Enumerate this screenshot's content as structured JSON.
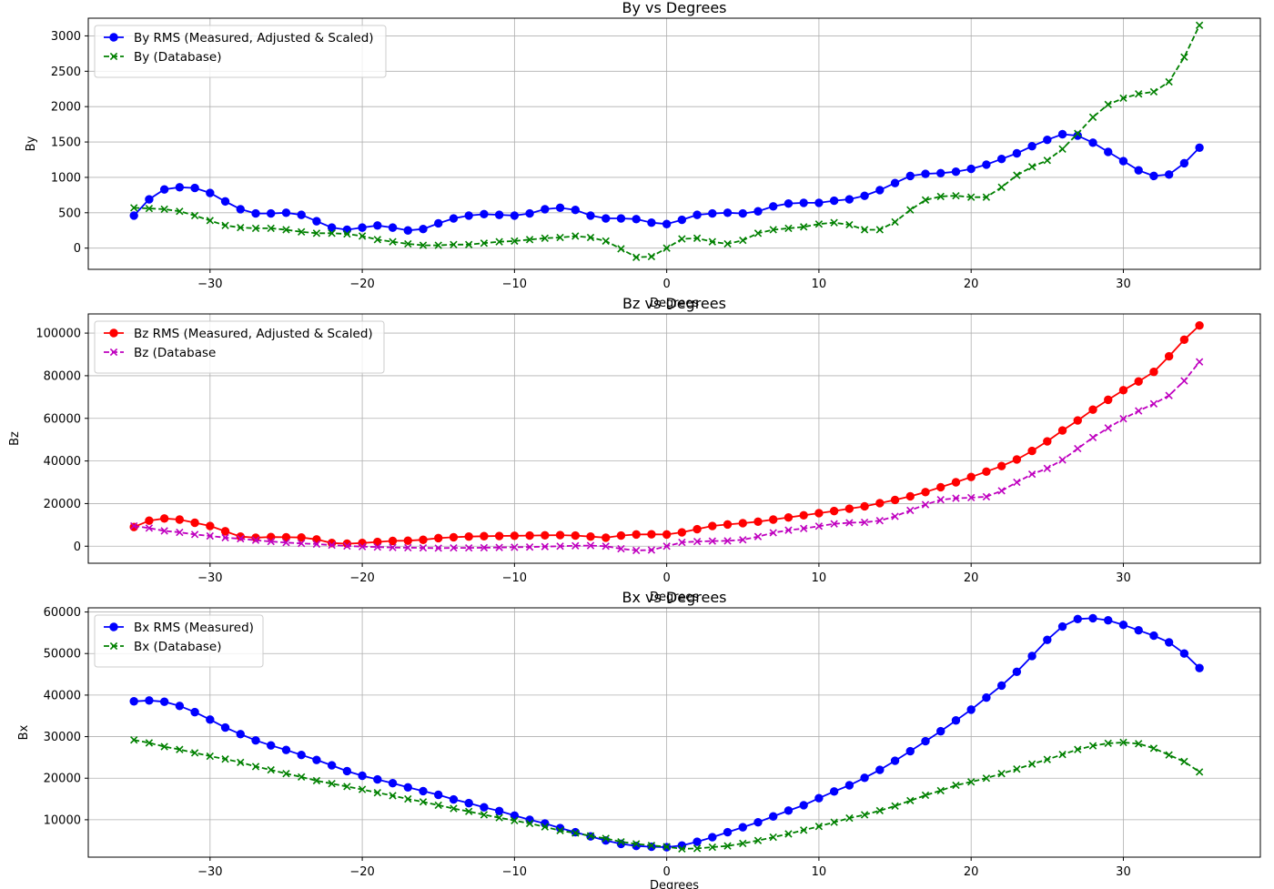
{
  "chart_data": [
    {
      "type": "line",
      "title": "By vs Degrees",
      "xlabel": "Degrees",
      "ylabel": "By",
      "xlim": [
        -38,
        39
      ],
      "ylim": [
        -300,
        3250
      ],
      "xticks": [
        -30,
        -20,
        -10,
        0,
        10,
        20,
        30
      ],
      "xtick_labels": [
        "−30",
        "−20",
        "−10",
        "0",
        "10",
        "20",
        "30"
      ],
      "yticks": [
        0,
        500,
        1000,
        1500,
        2000,
        2500,
        3000
      ],
      "ytick_labels": [
        "0",
        "500",
        "1000",
        "1500",
        "2000",
        "2500",
        "3000"
      ],
      "grid": true,
      "legend_position": "top-left",
      "x": [
        -35,
        -34,
        -33,
        -32,
        -31,
        -30,
        -29,
        -28,
        -27,
        -26,
        -25,
        -24,
        -23,
        -22,
        -21,
        -20,
        -19,
        -18,
        -17,
        -16,
        -15,
        -14,
        -13,
        -12,
        -11,
        -10,
        -9,
        -8,
        -7,
        -6,
        -5,
        -4,
        -3,
        -2,
        -1,
        0,
        1,
        2,
        3,
        4,
        5,
        6,
        7,
        8,
        9,
        10,
        11,
        12,
        13,
        14,
        15,
        16,
        17,
        18,
        19,
        20,
        21,
        22,
        23,
        24,
        25,
        26,
        27,
        28,
        29,
        30,
        31,
        32,
        33,
        34,
        35
      ],
      "series": [
        {
          "name": "By RMS (Measured, Adjusted & Scaled)",
          "color": "#0000ff",
          "style": "solid",
          "marker": "circle",
          "values": [
            460,
            690,
            830,
            860,
            850,
            780,
            660,
            550,
            490,
            490,
            500,
            470,
            380,
            290,
            260,
            290,
            320,
            290,
            250,
            270,
            350,
            420,
            460,
            480,
            470,
            460,
            490,
            550,
            570,
            540,
            460,
            420,
            420,
            410,
            360,
            340,
            400,
            470,
            490,
            500,
            490,
            520,
            590,
            630,
            640,
            640,
            670,
            690,
            740,
            820,
            920,
            1020,
            1050,
            1060,
            1080,
            1120,
            1180,
            1260,
            1340,
            1440,
            1530,
            1610,
            1590,
            1490,
            1360,
            1230,
            1100,
            1020,
            1040,
            1200,
            1420
          ]
        },
        {
          "name": "By (Database)",
          "color": "#008000",
          "style": "dashed",
          "marker": "x",
          "values": [
            570,
            560,
            550,
            520,
            460,
            390,
            320,
            290,
            280,
            280,
            260,
            230,
            210,
            210,
            200,
            170,
            120,
            90,
            60,
            40,
            40,
            50,
            50,
            70,
            90,
            100,
            120,
            140,
            150,
            170,
            150,
            100,
            -10,
            -130,
            -120,
            0,
            130,
            140,
            90,
            60,
            110,
            210,
            260,
            280,
            300,
            340,
            360,
            330,
            260,
            260,
            370,
            540,
            680,
            730,
            740,
            720,
            720,
            860,
            1030,
            1150,
            1240,
            1400,
            1620,
            1850,
            2030,
            2120,
            2180,
            2210,
            2350,
            2700,
            3150
          ]
        }
      ]
    },
    {
      "type": "line",
      "title": "Bz vs Degrees",
      "xlabel": "Degrees",
      "ylabel": "Bz",
      "xlim": [
        -38,
        39
      ],
      "ylim": [
        -8000,
        109000
      ],
      "xticks": [
        -30,
        -20,
        -10,
        0,
        10,
        20,
        30
      ],
      "xtick_labels": [
        "−30",
        "−20",
        "−10",
        "0",
        "10",
        "20",
        "30"
      ],
      "yticks": [
        0,
        20000,
        40000,
        60000,
        80000,
        100000
      ],
      "ytick_labels": [
        "0",
        "20000",
        "40000",
        "60000",
        "80000",
        "100000"
      ],
      "grid": true,
      "legend_position": "top-left",
      "x": [
        -35,
        -34,
        -33,
        -32,
        -31,
        -30,
        -29,
        -28,
        -27,
        -26,
        -25,
        -24,
        -23,
        -22,
        -21,
        -20,
        -19,
        -18,
        -17,
        -16,
        -15,
        -14,
        -13,
        -12,
        -11,
        -10,
        -9,
        -8,
        -7,
        -6,
        -5,
        -4,
        -3,
        -2,
        -1,
        0,
        1,
        2,
        3,
        4,
        5,
        6,
        7,
        8,
        9,
        10,
        11,
        12,
        13,
        14,
        15,
        16,
        17,
        18,
        19,
        20,
        21,
        22,
        23,
        24,
        25,
        26,
        27,
        28,
        29,
        30,
        31,
        32,
        33,
        34,
        35
      ],
      "series": [
        {
          "name": "Bz RMS (Measured, Adjusted & Scaled)",
          "color": "#ff0000",
          "style": "solid",
          "marker": "circle",
          "values": [
            9000,
            12000,
            13000,
            12500,
            11000,
            9500,
            7000,
            4500,
            4000,
            4300,
            4200,
            4100,
            3200,
            1500,
            1200,
            1500,
            2000,
            2500,
            2600,
            3000,
            3800,
            4200,
            4500,
            4700,
            4800,
            4900,
            5000,
            5100,
            5200,
            5000,
            4500,
            4000,
            5000,
            5500,
            5600,
            5500,
            6500,
            8000,
            9500,
            10200,
            10800,
            11500,
            12500,
            13500,
            14500,
            15500,
            16500,
            17600,
            18700,
            20200,
            21700,
            23400,
            25400,
            27700,
            30000,
            32500,
            35000,
            37600,
            40700,
            44700,
            49200,
            54300,
            59000,
            64100,
            68700,
            73200,
            77300,
            81800,
            89100,
            96900,
            103600
          ]
        },
        {
          "name": "Bz (Database",
          "color": "#bf00bf",
          "style": "dashed",
          "marker": "x",
          "values": [
            9500,
            8500,
            7200,
            6500,
            5500,
            4800,
            4000,
            3500,
            2800,
            2200,
            1700,
            1300,
            1000,
            500,
            100,
            -200,
            -400,
            -600,
            -700,
            -800,
            -900,
            -800,
            -800,
            -700,
            -600,
            -500,
            -400,
            -200,
            0,
            200,
            300,
            0,
            -1200,
            -2000,
            -1800,
            0,
            1800,
            2200,
            2400,
            2500,
            3000,
            4500,
            6300,
            7500,
            8300,
            9400,
            10500,
            11000,
            11200,
            12000,
            14000,
            16800,
            19500,
            21800,
            22500,
            22800,
            23200,
            26000,
            30000,
            33800,
            36500,
            40500,
            45800,
            51000,
            55500,
            59800,
            63500,
            66800,
            70700,
            77600,
            86500
          ]
        }
      ]
    },
    {
      "type": "line",
      "title": "Bx vs Degrees",
      "xlabel": "Degrees",
      "ylabel": "Bx",
      "xlim": [
        -38,
        39
      ],
      "ylim": [
        1000,
        61000
      ],
      "xticks": [
        -30,
        -20,
        -10,
        0,
        10,
        20,
        30
      ],
      "xtick_labels": [
        "−30",
        "−20",
        "−10",
        "0",
        "10",
        "20",
        "30"
      ],
      "yticks": [
        10000,
        20000,
        30000,
        40000,
        50000,
        60000
      ],
      "ytick_labels": [
        "10000",
        "20000",
        "30000",
        "40000",
        "50000",
        "60000"
      ],
      "grid": true,
      "legend_position": "top-left",
      "x": [
        -35,
        -34,
        -33,
        -32,
        -31,
        -30,
        -29,
        -28,
        -27,
        -26,
        -25,
        -24,
        -23,
        -22,
        -21,
        -20,
        -19,
        -18,
        -17,
        -16,
        -15,
        -14,
        -13,
        -12,
        -11,
        -10,
        -9,
        -8,
        -7,
        -6,
        -5,
        -4,
        -3,
        -2,
        -1,
        0,
        1,
        2,
        3,
        4,
        5,
        6,
        7,
        8,
        9,
        10,
        11,
        12,
        13,
        14,
        15,
        16,
        17,
        18,
        19,
        20,
        21,
        22,
        23,
        24,
        25,
        26,
        27,
        28,
        29,
        30,
        31,
        32,
        33,
        34,
        35
      ],
      "series": [
        {
          "name": "Bx RMS (Measured)",
          "color": "#0000ff",
          "style": "solid",
          "marker": "circle",
          "values": [
            38500,
            38700,
            38400,
            37400,
            35900,
            34100,
            32200,
            30600,
            29100,
            27900,
            26800,
            25600,
            24400,
            23100,
            21700,
            20600,
            19700,
            18800,
            17800,
            16900,
            16000,
            14900,
            14000,
            13000,
            12100,
            11000,
            10000,
            9100,
            8000,
            7000,
            6000,
            5000,
            4200,
            3700,
            3500,
            3400,
            3800,
            4700,
            5800,
            7000,
            8200,
            9400,
            10800,
            12200,
            13500,
            15200,
            16800,
            18300,
            20100,
            22000,
            24200,
            26500,
            28900,
            31300,
            33900,
            36500,
            39400,
            42300,
            45600,
            49400,
            53300,
            56500,
            58300,
            58500,
            58000,
            56900,
            55600,
            54300,
            52700,
            50000,
            46500
          ]
        },
        {
          "name": "Bx (Database)",
          "color": "#008000",
          "style": "dashed",
          "marker": "x",
          "values": [
            29200,
            28500,
            27600,
            26900,
            26100,
            25300,
            24600,
            23800,
            22800,
            22000,
            21100,
            20300,
            19400,
            18700,
            18000,
            17300,
            16500,
            15800,
            15000,
            14300,
            13500,
            12700,
            12000,
            11200,
            10500,
            9800,
            9100,
            8300,
            7400,
            6800,
            6100,
            5500,
            4700,
            4200,
            3800,
            3500,
            3000,
            3100,
            3400,
            3700,
            4300,
            5000,
            5800,
            6600,
            7500,
            8400,
            9400,
            10400,
            11200,
            12200,
            13300,
            14600,
            15900,
            17000,
            18300,
            19100,
            20000,
            21100,
            22200,
            23400,
            24500,
            25700,
            26900,
            27800,
            28400,
            28600,
            28300,
            27200,
            25600,
            24000,
            21500
          ]
        }
      ]
    }
  ]
}
